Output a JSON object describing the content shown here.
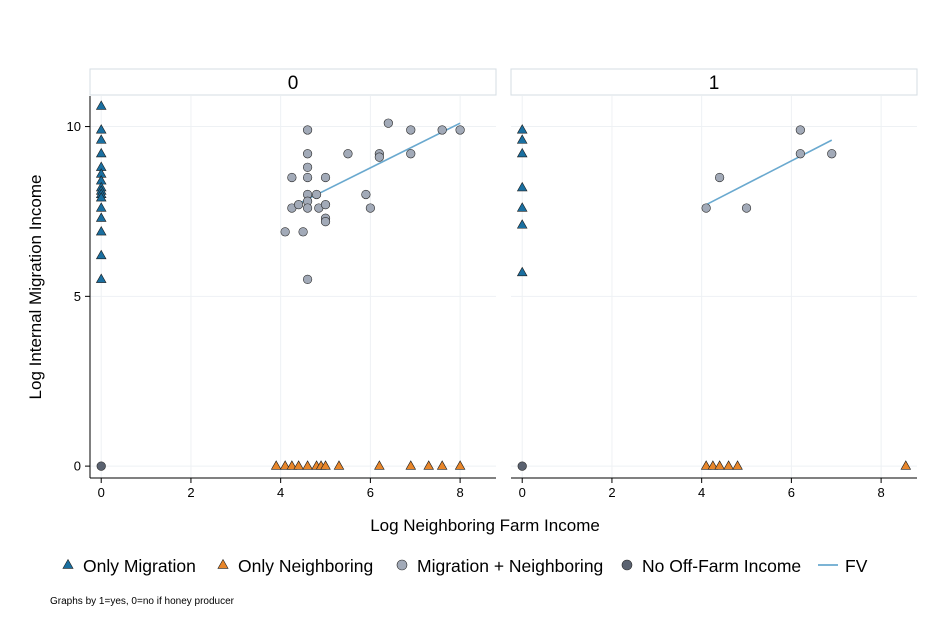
{
  "chart_data": {
    "type": "scatter",
    "xlabel": "Log Neighboring Farm Income",
    "ylabel": "Log Internal Migration Income",
    "xlim": [
      -0.25,
      8.8
    ],
    "ylim": [
      -0.35,
      10.9
    ],
    "xticks": [
      0,
      2,
      4,
      6,
      8
    ],
    "yticks": [
      0,
      5,
      10
    ],
    "grid": true,
    "legend_position": "bottom",
    "note": "Graphs by 1=yes, 0=no if honey producer",
    "colors": {
      "only_migration": "#1a6fa0",
      "only_neighboring": "#e8862a",
      "migration_neighboring": "#a2aab8",
      "no_offfarm": "#5a6270",
      "fv": "#6aa9cf"
    },
    "legend": [
      {
        "key": "only_migration",
        "label": "Only Migration",
        "marker": "triangle"
      },
      {
        "key": "only_neighboring",
        "label": "Only Neighboring",
        "marker": "triangle"
      },
      {
        "key": "migration_neighboring",
        "label": "Migration + Neighboring",
        "marker": "circle"
      },
      {
        "key": "no_offfarm",
        "label": "No Off-Farm Income",
        "marker": "circle"
      },
      {
        "key": "fv",
        "label": "FV",
        "marker": "line"
      }
    ],
    "panels": [
      {
        "title": "0",
        "series": [
          {
            "key": "only_migration",
            "points": [
              [
                0,
                10.6
              ],
              [
                0,
                9.9
              ],
              [
                0,
                9.6
              ],
              [
                0,
                9.2
              ],
              [
                0,
                8.8
              ],
              [
                0,
                8.6
              ],
              [
                0,
                8.4
              ],
              [
                0,
                8.2
              ],
              [
                0,
                8.1
              ],
              [
                0,
                8.0
              ],
              [
                0,
                7.9
              ],
              [
                0,
                7.6
              ],
              [
                0,
                7.3
              ],
              [
                0,
                6.9
              ],
              [
                0,
                6.2
              ],
              [
                0,
                5.5
              ]
            ]
          },
          {
            "key": "only_neighboring",
            "points": [
              [
                3.9,
                0
              ],
              [
                4.1,
                0
              ],
              [
                4.25,
                0
              ],
              [
                4.4,
                0
              ],
              [
                4.6,
                0
              ],
              [
                4.8,
                0
              ],
              [
                4.9,
                0
              ],
              [
                5.0,
                0
              ],
              [
                5.3,
                0
              ],
              [
                6.2,
                0
              ],
              [
                6.9,
                0
              ],
              [
                7.3,
                0
              ],
              [
                7.6,
                0
              ],
              [
                8.0,
                0
              ]
            ]
          },
          {
            "key": "migration_neighboring",
            "points": [
              [
                4.1,
                6.9
              ],
              [
                4.25,
                8.5
              ],
              [
                4.25,
                7.6
              ],
              [
                4.4,
                7.7
              ],
              [
                4.5,
                6.9
              ],
              [
                4.6,
                9.9
              ],
              [
                4.6,
                9.2
              ],
              [
                4.6,
                8.8
              ],
              [
                4.6,
                8.5
              ],
              [
                4.6,
                8.0
              ],
              [
                4.6,
                7.8
              ],
              [
                4.6,
                7.6
              ],
              [
                4.6,
                5.5
              ],
              [
                4.8,
                8.0
              ],
              [
                4.85,
                7.6
              ],
              [
                5.0,
                8.5
              ],
              [
                5.0,
                7.7
              ],
              [
                5.0,
                7.3
              ],
              [
                5.0,
                7.2
              ],
              [
                5.5,
                9.2
              ],
              [
                5.9,
                8.0
              ],
              [
                6.0,
                7.6
              ],
              [
                6.2,
                9.2
              ],
              [
                6.2,
                9.1
              ],
              [
                6.4,
                10.1
              ],
              [
                6.9,
                9.9
              ],
              [
                6.9,
                9.2
              ],
              [
                7.6,
                9.9
              ],
              [
                8.0,
                9.9
              ]
            ]
          },
          {
            "key": "no_offfarm",
            "points": [
              [
                0,
                0
              ]
            ]
          }
        ],
        "fv": [
          [
            4.2,
            7.6
          ],
          [
            8.0,
            10.1
          ]
        ]
      },
      {
        "title": "1",
        "series": [
          {
            "key": "only_migration",
            "points": [
              [
                0,
                9.9
              ],
              [
                0,
                9.6
              ],
              [
                0,
                9.2
              ],
              [
                0,
                8.2
              ],
              [
                0,
                7.6
              ],
              [
                0,
                7.1
              ],
              [
                0,
                5.7
              ]
            ]
          },
          {
            "key": "only_neighboring",
            "points": [
              [
                4.1,
                0
              ],
              [
                4.25,
                0
              ],
              [
                4.4,
                0
              ],
              [
                4.6,
                0
              ],
              [
                4.8,
                0
              ],
              [
                8.55,
                0
              ]
            ]
          },
          {
            "key": "migration_neighboring",
            "points": [
              [
                4.1,
                7.6
              ],
              [
                4.4,
                8.5
              ],
              [
                5.0,
                7.6
              ],
              [
                6.2,
                9.9
              ],
              [
                6.2,
                9.2
              ],
              [
                6.9,
                9.2
              ]
            ]
          },
          {
            "key": "no_offfarm",
            "points": [
              [
                0,
                0
              ]
            ]
          }
        ],
        "fv": [
          [
            4.1,
            7.7
          ],
          [
            6.9,
            9.6
          ]
        ]
      }
    ]
  }
}
